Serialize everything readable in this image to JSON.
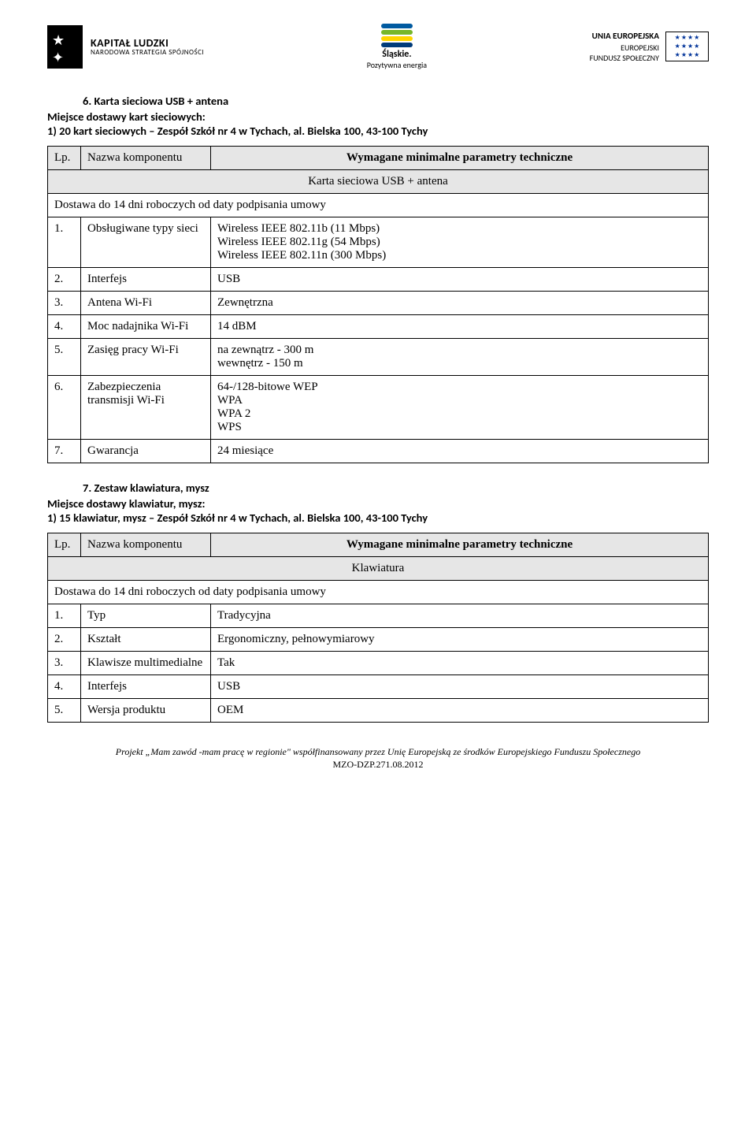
{
  "header": {
    "kl_line1": "KAPITAŁ LUDZKI",
    "kl_line2": "NARODOWA STRATEGIA SPÓJNOŚCI",
    "center_line1": "Śląskie.",
    "center_line2": "Pozytywna energia",
    "eu_line1": "UNIA EUROPEJSKA",
    "eu_line2": "EUROPEJSKI",
    "eu_line3": "FUNDUSZ SPOŁECZNY",
    "wave_colors": [
      "#005aa0",
      "#77b72a",
      "#ffd500",
      "#003b7a"
    ]
  },
  "section6": {
    "title": "6.   Karta sieciowa  USB + antena",
    "intro_line1": "Miejsce dostawy kart sieciowych:",
    "intro_line2": "1)  20 kart sieciowych – Zespół Szkół nr 4 w Tychach, al. Bielska  100, 43-100 Tychy",
    "lp_label": "Lp.",
    "name_label": "Nazwa komponentu",
    "param_label": "Wymagane minimalne parametry techniczne",
    "caption": "Karta sieciowa USB + antena",
    "dostawa": "Dostawa do 14 dni roboczych od daty podpisania umowy",
    "rows": [
      {
        "n": "1.",
        "name": "Obsługiwane typy sieci",
        "val": "Wireless IEEE 802.11b (11 Mbps)\nWireless IEEE 802.11g (54 Mbps)\nWireless IEEE 802.11n (300 Mbps)"
      },
      {
        "n": "2.",
        "name": "Interfejs",
        "val": "USB"
      },
      {
        "n": "3.",
        "name": "Antena Wi-Fi",
        "val": "Zewnętrzna"
      },
      {
        "n": "4.",
        "name": "Moc nadajnika Wi-Fi",
        "val": "14 dBM"
      },
      {
        "n": "5.",
        "name": "Zasięg pracy Wi-Fi",
        "val": "na zewnątrz - 300 m\nwewnętrz - 150 m"
      },
      {
        "n": "6.",
        "name": "Zabezpieczenia transmisji Wi-Fi",
        "val": "64-/128-bitowe WEP\nWPA\nWPA 2\nWPS",
        "valClass": "cal"
      },
      {
        "n": "7.",
        "name": "Gwarancja",
        "val": "24 miesiące"
      }
    ]
  },
  "section7": {
    "title": "7.   Zestaw klawiatura, mysz",
    "intro_line1": "Miejsce dostawy klawiatur, mysz:",
    "intro_line2": "1)  15 klawiatur, mysz – Zespół Szkół nr 4 w Tychach, al. Bielska  100, 43-100 Tychy",
    "lp_label": "Lp.",
    "name_label": "Nazwa komponentu",
    "param_label": "Wymagane minimalne parametry techniczne",
    "caption": "Klawiatura",
    "dostawa": "Dostawa do 14 dni roboczych od daty podpisania umowy",
    "rows": [
      {
        "n": "1.",
        "name": "Typ",
        "val": "Tradycyjna"
      },
      {
        "n": "2.",
        "name": "Kształt",
        "val": "Ergonomiczny, pełnowymiarowy"
      },
      {
        "n": "3.",
        "name": "Klawisze multimedialne",
        "val": "Tak"
      },
      {
        "n": "4.",
        "name": "Interfejs",
        "val": "USB"
      },
      {
        "n": "5.",
        "name": "Wersja produktu",
        "val": "OEM"
      }
    ]
  },
  "footer": {
    "line1": "Projekt „Mam zawód -mam pracę w regionie\" współfinansowany przez Unię Europejską ze środków Europejskiego Funduszu Społecznego",
    "line2": "MZO-DZP.271.08.2012"
  }
}
